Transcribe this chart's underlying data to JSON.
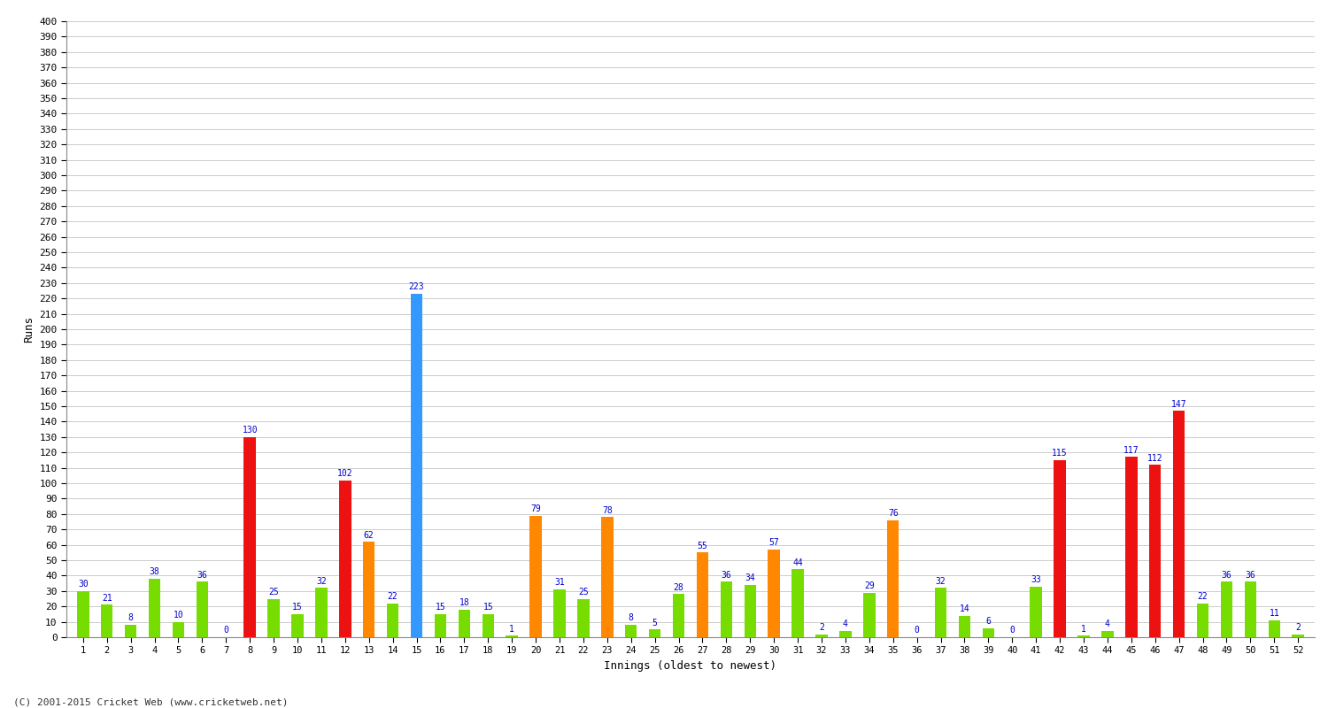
{
  "title": "",
  "xlabel": "Innings (oldest to newest)",
  "ylabel": "Runs",
  "innings": [
    1,
    2,
    3,
    4,
    5,
    6,
    7,
    8,
    9,
    10,
    11,
    12,
    13,
    14,
    15,
    16,
    17,
    18,
    19,
    20,
    21,
    22,
    23,
    24,
    25,
    26,
    27,
    28,
    29,
    30,
    31,
    32,
    33,
    34,
    35,
    36,
    37,
    38,
    39,
    40,
    41,
    42,
    43,
    44,
    45,
    46,
    47,
    48,
    49,
    50,
    51,
    52
  ],
  "values": [
    30,
    21,
    8,
    38,
    10,
    36,
    0,
    130,
    25,
    15,
    32,
    102,
    62,
    22,
    223,
    15,
    18,
    15,
    1,
    79,
    31,
    25,
    78,
    8,
    5,
    28,
    55,
    36,
    34,
    57,
    44,
    2,
    4,
    29,
    76,
    0,
    32,
    14,
    6,
    0,
    33,
    115,
    1,
    4,
    117,
    112,
    147,
    22,
    36,
    36,
    11,
    2
  ],
  "colors": [
    "#77dd00",
    "#77dd00",
    "#77dd00",
    "#77dd00",
    "#77dd00",
    "#77dd00",
    "#77dd00",
    "#ee1111",
    "#77dd00",
    "#77dd00",
    "#77dd00",
    "#ee1111",
    "#ff8800",
    "#77dd00",
    "#3399ff",
    "#77dd00",
    "#77dd00",
    "#77dd00",
    "#77dd00",
    "#ff8800",
    "#77dd00",
    "#77dd00",
    "#ff8800",
    "#77dd00",
    "#77dd00",
    "#77dd00",
    "#ff8800",
    "#77dd00",
    "#77dd00",
    "#ff8800",
    "#77dd00",
    "#77dd00",
    "#77dd00",
    "#77dd00",
    "#ff8800",
    "#77dd00",
    "#77dd00",
    "#77dd00",
    "#77dd00",
    "#77dd00",
    "#77dd00",
    "#ee1111",
    "#77dd00",
    "#77dd00",
    "#ee1111",
    "#ee1111",
    "#ee1111",
    "#77dd00",
    "#77dd00",
    "#77dd00",
    "#77dd00",
    "#77dd00"
  ],
  "ylim": [
    0,
    400
  ],
  "ytick_step": 10,
  "bg_color": "#ffffff",
  "grid_color": "#cccccc",
  "label_color": "#0000cc",
  "footnote": "(C) 2001-2015 Cricket Web (www.cricketweb.net)",
  "bar_width": 0.5
}
